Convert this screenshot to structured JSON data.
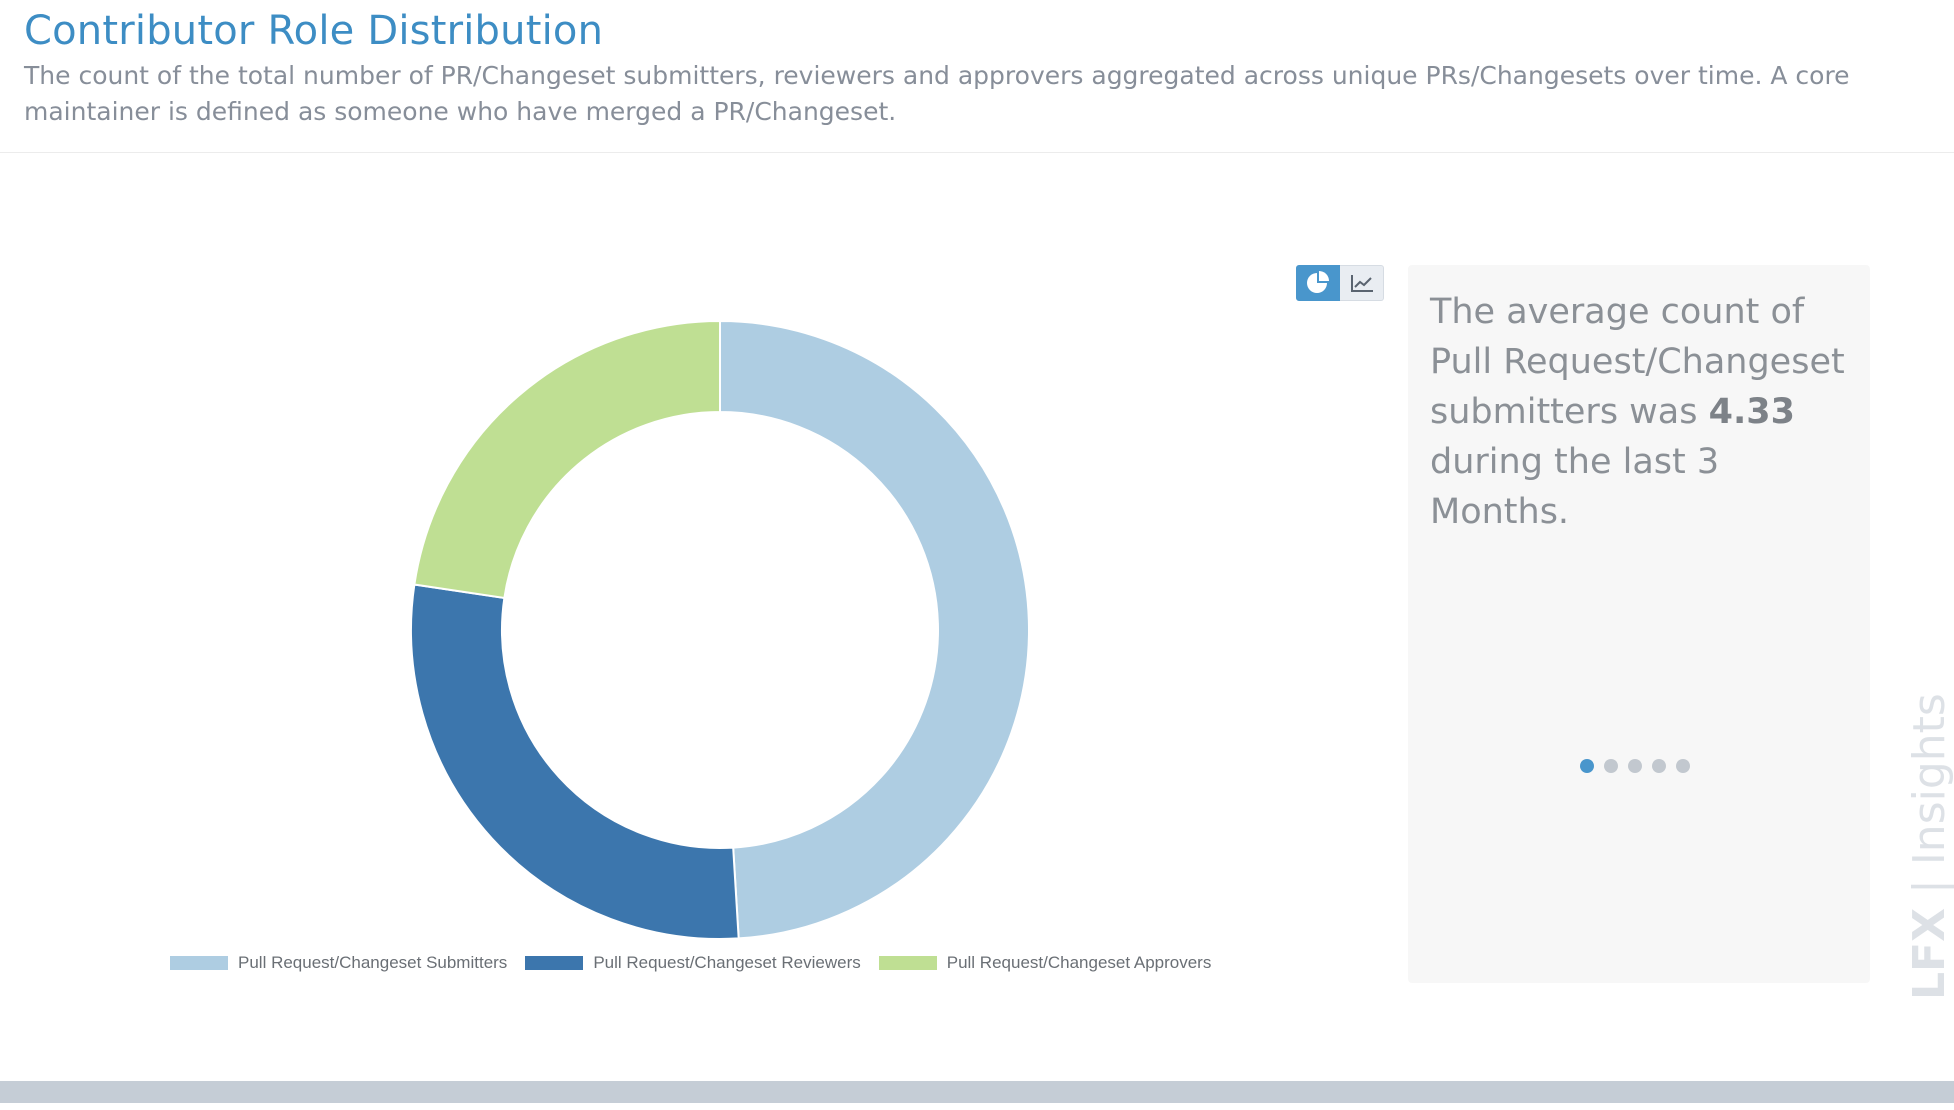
{
  "header": {
    "title": "Contributor Role Distribution",
    "description": "The count of the total number of PR/Changeset submitters, reviewers and approvers aggregated across unique PRs/Changesets over time. A core maintainer is defined as someone who have merged a PR/Changeset."
  },
  "toggle": {
    "options": [
      {
        "icon": "pie-chart-icon",
        "active": true
      },
      {
        "icon": "line-chart-icon",
        "active": false
      }
    ],
    "active_color": "#4996cc"
  },
  "chart_data": {
    "type": "pie",
    "donut": true,
    "categories": [
      "Pull Request/Changeset Submitters",
      "Pull Request/Changeset Reviewers",
      "Pull Request/Changeset Approvers"
    ],
    "values": [
      4.33,
      2.5,
      2
    ],
    "colors": [
      "#aecde2",
      "#3c76ad",
      "#bfdf93"
    ],
    "legend_position": "bottom"
  },
  "insight": {
    "text_before": "The average count of Pull Request/Changeset submitters was ",
    "value": "4.33",
    "text_after": " during the last 3 Months.",
    "pagination": {
      "total": 5,
      "active_index": 0
    }
  },
  "watermark": {
    "brand_mark": "LFX",
    "product": "Insights"
  }
}
